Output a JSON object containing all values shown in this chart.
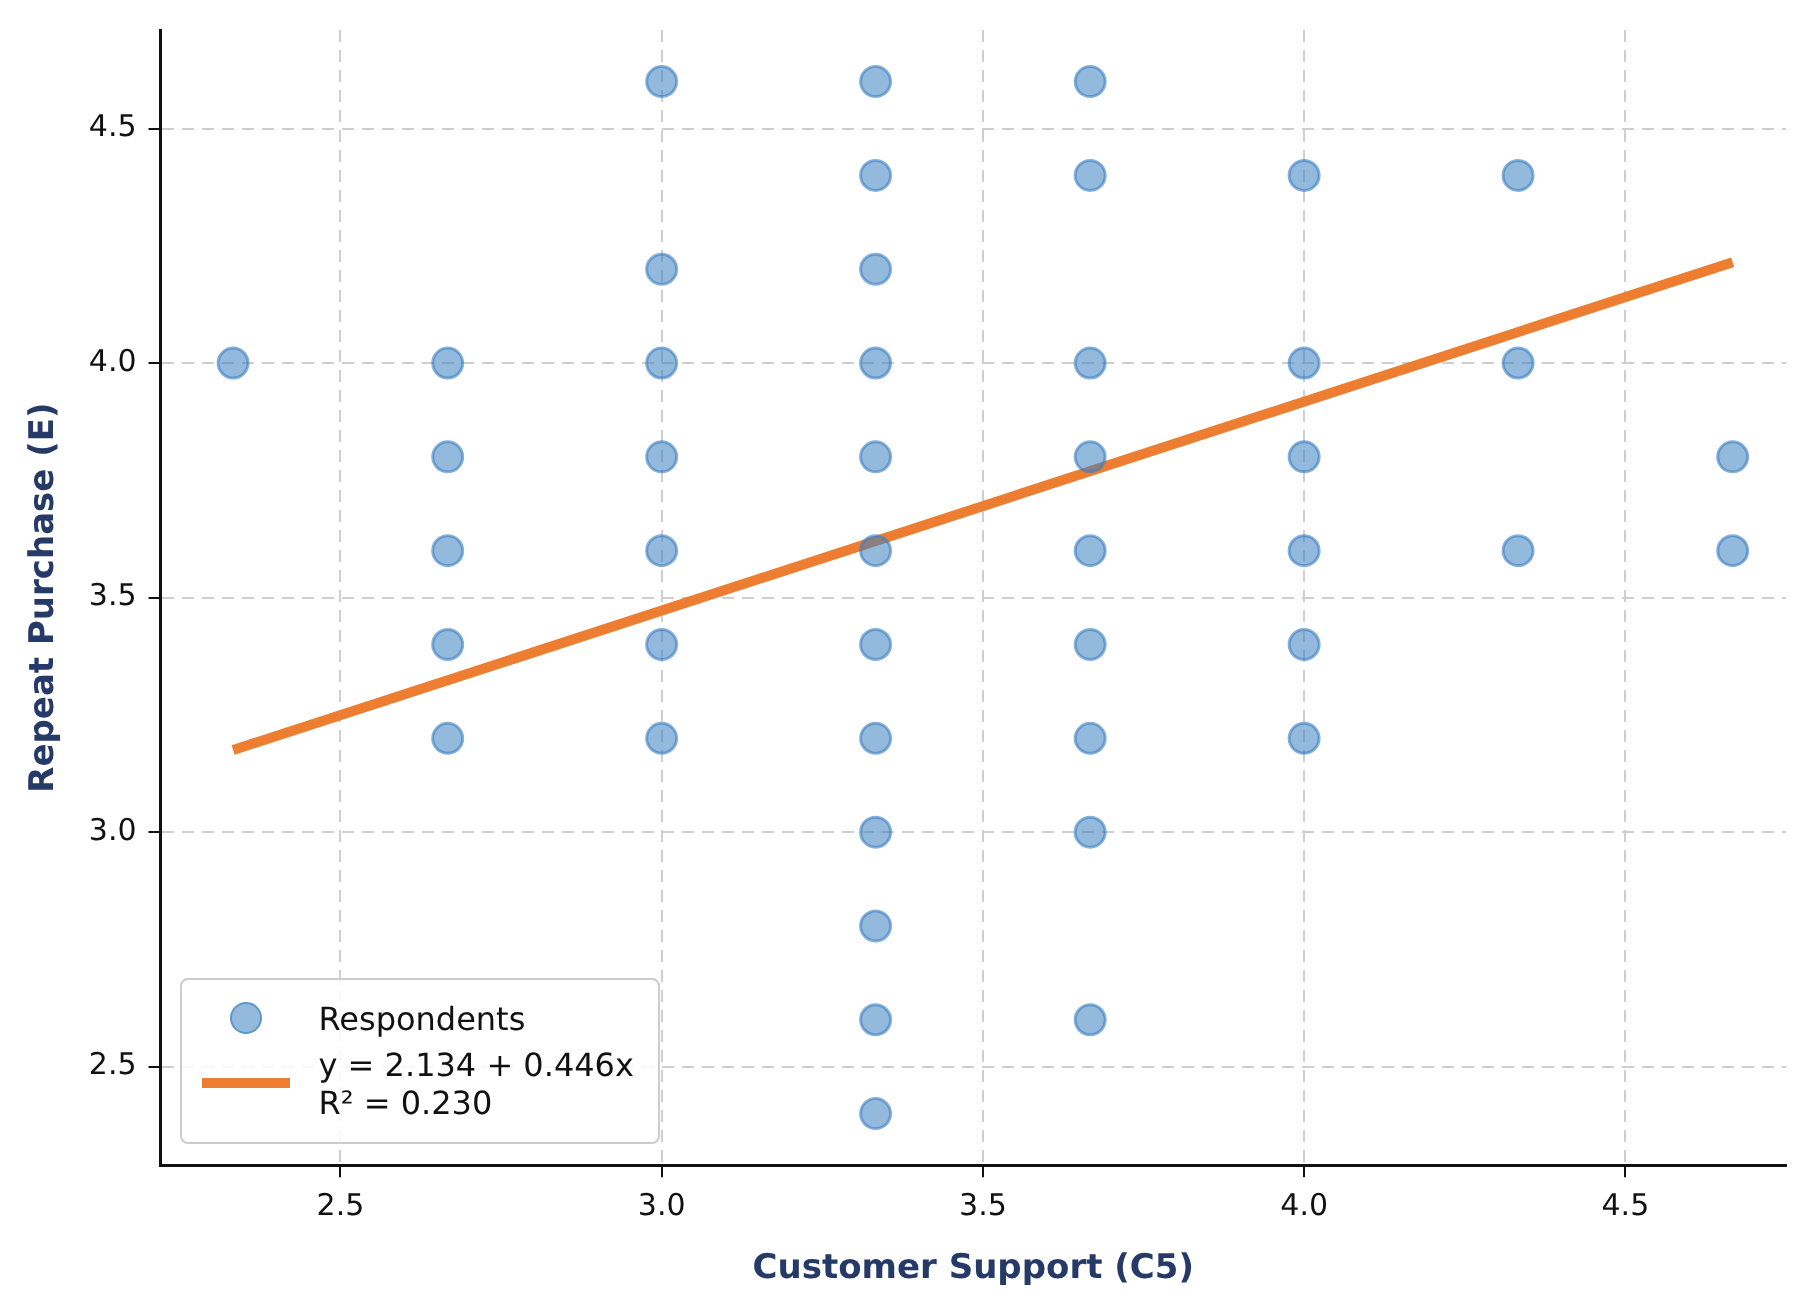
{
  "chart_data": {
    "type": "scatter",
    "xlabel": "Customer Support (C5)",
    "ylabel": "Repeat Purchase (E)",
    "xlim": [
      2.22,
      4.75
    ],
    "xticks": [
      2.5,
      {
        "value": 3,
        "label": "3.0"
      },
      3.5,
      {
        "value": 4,
        "label": "4.0"
      },
      4.5
    ],
    "ylim": [
      2.29,
      4.71
    ],
    "yticks": [
      2.5,
      {
        "value": 3,
        "label": "3.0"
      },
      3.5,
      {
        "value": 4,
        "label": "4.0"
      },
      4.5
    ],
    "grid": true,
    "legend": "bottom left",
    "marker": "circle",
    "series": [
      {
        "name": "Respondents",
        "type": "scatter",
        "color": "#3a7fc1",
        "x": [
          2.333,
          2.667,
          2.667,
          2.667,
          2.667,
          2.667,
          3.0,
          3.0,
          3.0,
          3.0,
          3.0,
          3.0,
          3.0,
          3.333,
          3.333,
          3.333,
          3.333,
          3.333,
          3.333,
          3.333,
          3.333,
          3.333,
          3.333,
          3.333,
          3.333,
          3.667,
          3.667,
          3.667,
          3.667,
          3.667,
          3.667,
          3.667,
          3.667,
          3.667,
          4.0,
          4.0,
          4.0,
          4.0,
          4.0,
          4.0,
          4.333,
          4.333,
          4.333,
          4.667,
          4.667
        ],
        "values": [
          4.0,
          4.0,
          3.8,
          3.6,
          3.4,
          3.2,
          4.6,
          4.2,
          4.0,
          3.8,
          3.6,
          3.4,
          3.2,
          4.6,
          4.4,
          4.2,
          4.0,
          3.8,
          3.6,
          3.4,
          3.2,
          3.0,
          2.8,
          2.6,
          2.4,
          4.6,
          4.4,
          4.0,
          3.8,
          3.6,
          3.4,
          3.2,
          3.0,
          2.6,
          4.4,
          4.0,
          3.8,
          3.6,
          3.4,
          3.2,
          4.4,
          4.0,
          3.6,
          3.8,
          3.6
        ]
      },
      {
        "name": "y = 2.134 + 0.446x\nR² = 0.230",
        "type": "line",
        "color": "#ed7d31",
        "marker": "none",
        "line_style": "solid",
        "x": [
          2.333,
          4.667
        ],
        "values": [
          3.175,
          4.215
        ]
      }
    ]
  }
}
